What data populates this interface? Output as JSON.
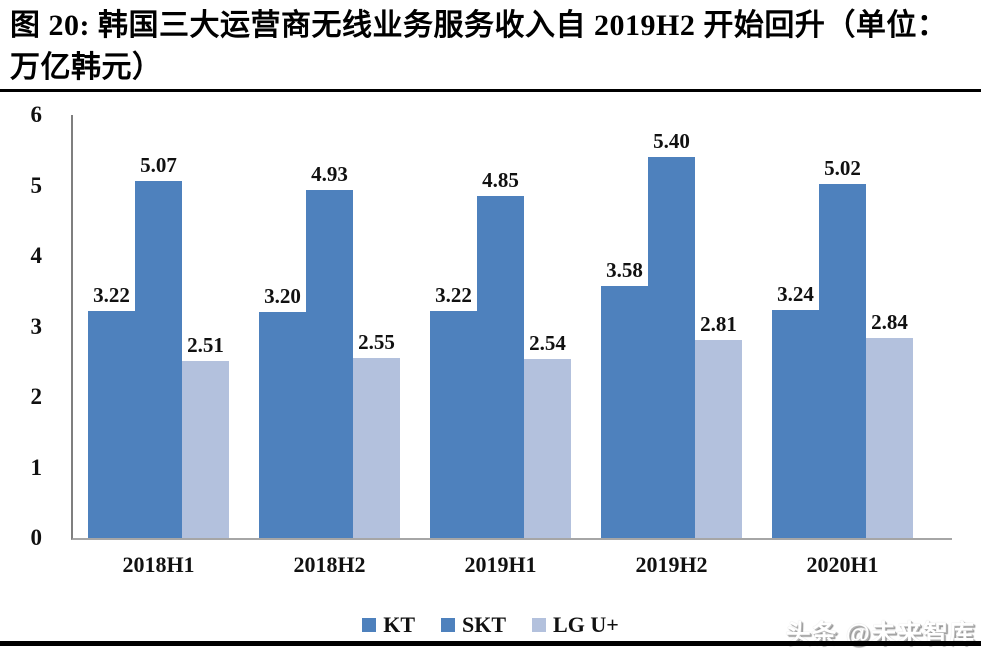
{
  "header": {
    "title_line1": "图 20: 韩国三大运营商无线业务服务收入自 2019H2 开始回升（单位：",
    "title_line2": "万亿韩元）"
  },
  "chart_data": {
    "type": "bar",
    "title": "图 20: 韩国三大运营商无线业务服务收入自 2019H2 开始回升（单位：万亿韩元）",
    "unit": "万亿韩元",
    "categories": [
      "2018H1",
      "2018H2",
      "2019H1",
      "2019H2",
      "2020H1"
    ],
    "series": [
      {
        "name": "KT",
        "color": "#4E81BD",
        "values": [
          3.22,
          3.2,
          3.22,
          3.58,
          3.24
        ]
      },
      {
        "name": "SKT",
        "color": "#4E81BD",
        "values": [
          5.07,
          4.93,
          4.85,
          5.4,
          5.02
        ]
      },
      {
        "name": "LG U+",
        "color": "#B3C1DD",
        "values": [
          2.51,
          2.55,
          2.54,
          2.81,
          2.84
        ]
      }
    ],
    "ylim": [
      0,
      6
    ],
    "ytick_step": 1,
    "grid": false,
    "legend_position": "bottom",
    "value_labels_decimals": 2
  },
  "watermark": {
    "text": "头条 @未来智库"
  },
  "colors": {
    "y_axis_line": "#7f7f7f",
    "x_baseline": "#a6a6a6",
    "rule": "#000000",
    "background": "#ffffff"
  }
}
